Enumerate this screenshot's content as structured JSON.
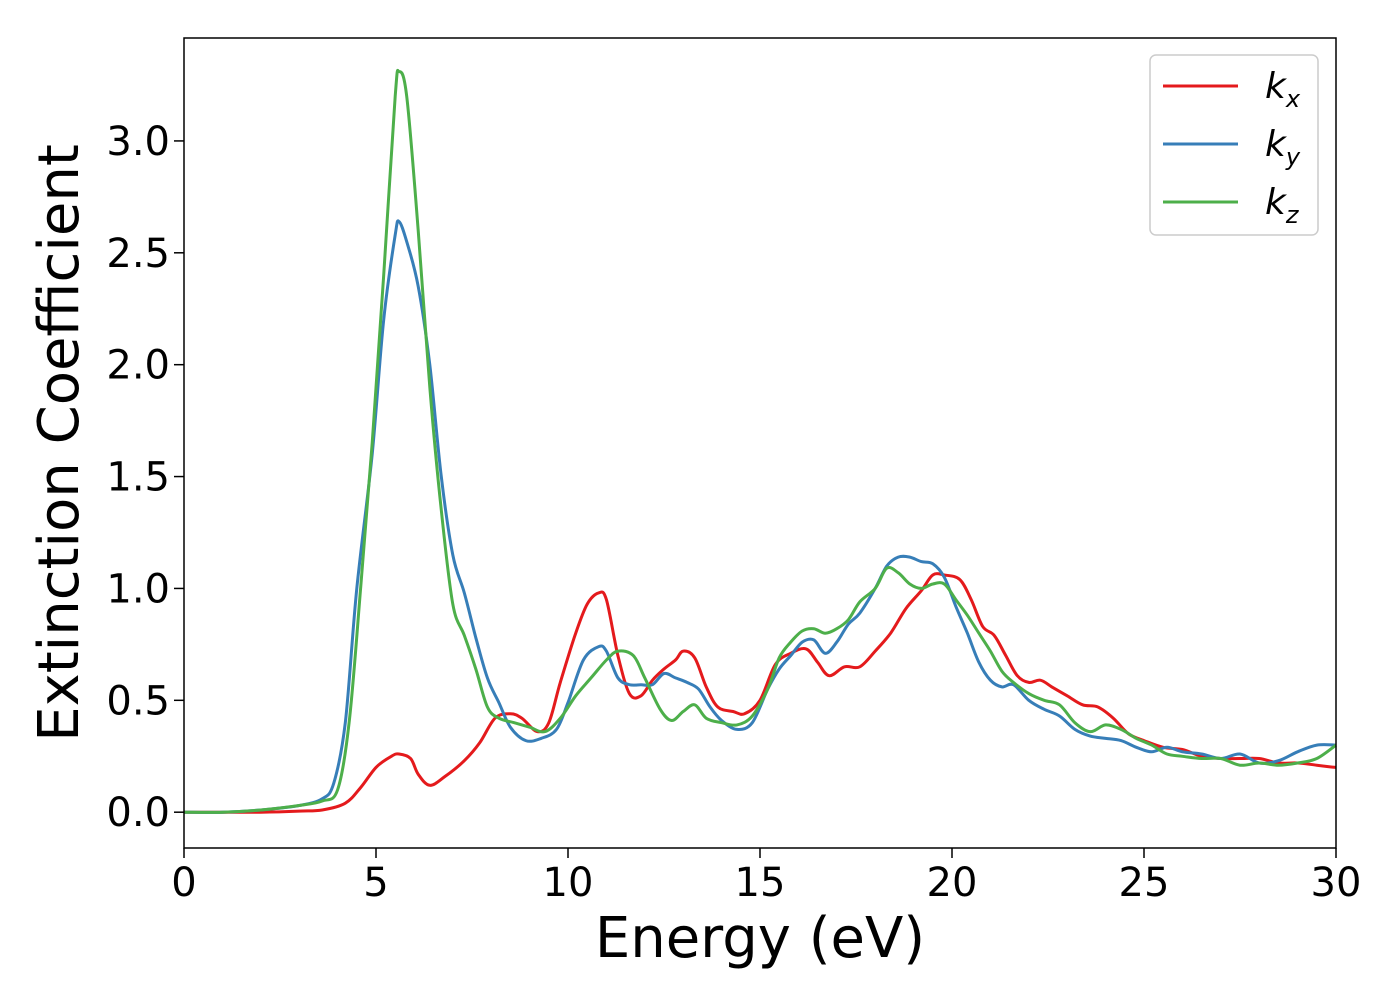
{
  "chart_data": {
    "type": "line",
    "xlabel": "Energy (eV)",
    "ylabel": "Extinction Coefficient",
    "xlim": [
      0,
      30
    ],
    "ylim": [
      -0.16,
      3.46
    ],
    "x_ticks": [
      "0",
      "5",
      "10",
      "15",
      "20",
      "25",
      "30"
    ],
    "y_ticks": [
      "0.0",
      "0.5",
      "1.0",
      "1.5",
      "2.0",
      "2.5",
      "3.0"
    ],
    "grid": false,
    "legend_position": "top-right",
    "series": [
      {
        "name": "k",
        "subscript": "x",
        "color": "#e41a1c",
        "points": [
          [
            0,
            0
          ],
          [
            1,
            0
          ],
          [
            2,
            0
          ],
          [
            3,
            0.005
          ],
          [
            3.6,
            0.01
          ],
          [
            4.2,
            0.04
          ],
          [
            4.6,
            0.11
          ],
          [
            5.0,
            0.2
          ],
          [
            5.4,
            0.25
          ],
          [
            5.6,
            0.26
          ],
          [
            5.9,
            0.24
          ],
          [
            6.1,
            0.17
          ],
          [
            6.4,
            0.12
          ],
          [
            6.8,
            0.16
          ],
          [
            7.3,
            0.23
          ],
          [
            7.7,
            0.31
          ],
          [
            8.1,
            0.42
          ],
          [
            8.5,
            0.44
          ],
          [
            8.8,
            0.42
          ],
          [
            9.2,
            0.36
          ],
          [
            9.5,
            0.4
          ],
          [
            9.8,
            0.58
          ],
          [
            10.2,
            0.8
          ],
          [
            10.5,
            0.93
          ],
          [
            10.8,
            0.98
          ],
          [
            11.0,
            0.95
          ],
          [
            11.3,
            0.7
          ],
          [
            11.6,
            0.53
          ],
          [
            11.9,
            0.52
          ],
          [
            12.2,
            0.59
          ],
          [
            12.5,
            0.64
          ],
          [
            12.8,
            0.68
          ],
          [
            13.0,
            0.72
          ],
          [
            13.3,
            0.69
          ],
          [
            13.6,
            0.56
          ],
          [
            13.9,
            0.47
          ],
          [
            14.3,
            0.45
          ],
          [
            14.6,
            0.44
          ],
          [
            15.0,
            0.5
          ],
          [
            15.4,
            0.66
          ],
          [
            15.8,
            0.71
          ],
          [
            16.2,
            0.73
          ],
          [
            16.5,
            0.67
          ],
          [
            16.8,
            0.61
          ],
          [
            17.2,
            0.65
          ],
          [
            17.6,
            0.65
          ],
          [
            18.0,
            0.72
          ],
          [
            18.4,
            0.8
          ],
          [
            18.8,
            0.91
          ],
          [
            19.2,
            0.99
          ],
          [
            19.5,
            1.06
          ],
          [
            19.8,
            1.06
          ],
          [
            20.2,
            1.04
          ],
          [
            20.5,
            0.95
          ],
          [
            20.8,
            0.83
          ],
          [
            21.1,
            0.79
          ],
          [
            21.4,
            0.7
          ],
          [
            21.7,
            0.61
          ],
          [
            22.0,
            0.58
          ],
          [
            22.3,
            0.59
          ],
          [
            22.6,
            0.56
          ],
          [
            23.0,
            0.52
          ],
          [
            23.4,
            0.48
          ],
          [
            23.8,
            0.47
          ],
          [
            24.2,
            0.42
          ],
          [
            24.6,
            0.35
          ],
          [
            25.0,
            0.32
          ],
          [
            25.5,
            0.29
          ],
          [
            26.0,
            0.28
          ],
          [
            26.5,
            0.25
          ],
          [
            27.0,
            0.24
          ],
          [
            27.5,
            0.24
          ],
          [
            28.0,
            0.24
          ],
          [
            28.5,
            0.22
          ],
          [
            29.0,
            0.22
          ],
          [
            29.5,
            0.21
          ],
          [
            30,
            0.2
          ]
        ]
      },
      {
        "name": "k",
        "subscript": "y",
        "color": "#377eb8",
        "points": [
          [
            0,
            0
          ],
          [
            1,
            0
          ],
          [
            2,
            0.01
          ],
          [
            3,
            0.03
          ],
          [
            3.6,
            0.06
          ],
          [
            3.9,
            0.13
          ],
          [
            4.2,
            0.4
          ],
          [
            4.5,
            1.0
          ],
          [
            4.9,
            1.6
          ],
          [
            5.2,
            2.2
          ],
          [
            5.5,
            2.58
          ],
          [
            5.6,
            2.64
          ],
          [
            5.8,
            2.55
          ],
          [
            6.1,
            2.35
          ],
          [
            6.4,
            2.0
          ],
          [
            6.7,
            1.5
          ],
          [
            7.0,
            1.15
          ],
          [
            7.3,
            0.98
          ],
          [
            7.6,
            0.78
          ],
          [
            7.9,
            0.6
          ],
          [
            8.2,
            0.49
          ],
          [
            8.5,
            0.38
          ],
          [
            8.9,
            0.32
          ],
          [
            9.3,
            0.33
          ],
          [
            9.7,
            0.37
          ],
          [
            10.0,
            0.49
          ],
          [
            10.4,
            0.68
          ],
          [
            10.8,
            0.74
          ],
          [
            11.0,
            0.72
          ],
          [
            11.3,
            0.6
          ],
          [
            11.6,
            0.57
          ],
          [
            11.9,
            0.57
          ],
          [
            12.2,
            0.57
          ],
          [
            12.5,
            0.62
          ],
          [
            12.8,
            0.6
          ],
          [
            13.1,
            0.58
          ],
          [
            13.4,
            0.55
          ],
          [
            13.7,
            0.47
          ],
          [
            14.0,
            0.41
          ],
          [
            14.4,
            0.37
          ],
          [
            14.8,
            0.4
          ],
          [
            15.2,
            0.55
          ],
          [
            15.5,
            0.64
          ],
          [
            15.8,
            0.7
          ],
          [
            16.1,
            0.76
          ],
          [
            16.4,
            0.77
          ],
          [
            16.7,
            0.71
          ],
          [
            17.0,
            0.76
          ],
          [
            17.3,
            0.84
          ],
          [
            17.6,
            0.89
          ],
          [
            18.0,
            1.0
          ],
          [
            18.3,
            1.1
          ],
          [
            18.6,
            1.14
          ],
          [
            18.9,
            1.14
          ],
          [
            19.2,
            1.12
          ],
          [
            19.5,
            1.11
          ],
          [
            19.8,
            1.05
          ],
          [
            20.1,
            0.92
          ],
          [
            20.4,
            0.8
          ],
          [
            20.7,
            0.67
          ],
          [
            21.0,
            0.59
          ],
          [
            21.3,
            0.56
          ],
          [
            21.6,
            0.57
          ],
          [
            22.0,
            0.5
          ],
          [
            22.4,
            0.46
          ],
          [
            22.8,
            0.43
          ],
          [
            23.2,
            0.37
          ],
          [
            23.6,
            0.34
          ],
          [
            24.0,
            0.33
          ],
          [
            24.4,
            0.32
          ],
          [
            24.8,
            0.29
          ],
          [
            25.2,
            0.27
          ],
          [
            25.6,
            0.29
          ],
          [
            26.0,
            0.27
          ],
          [
            26.5,
            0.26
          ],
          [
            27.0,
            0.24
          ],
          [
            27.5,
            0.26
          ],
          [
            28.0,
            0.22
          ],
          [
            28.5,
            0.23
          ],
          [
            29.0,
            0.27
          ],
          [
            29.5,
            0.3
          ],
          [
            30,
            0.3
          ]
        ]
      },
      {
        "name": "k",
        "subscript": "z",
        "color": "#4daf4a",
        "points": [
          [
            0,
            0
          ],
          [
            1,
            0
          ],
          [
            2,
            0.01
          ],
          [
            3,
            0.03
          ],
          [
            3.6,
            0.05
          ],
          [
            4.0,
            0.1
          ],
          [
            4.3,
            0.4
          ],
          [
            4.6,
            1.0
          ],
          [
            4.9,
            1.65
          ],
          [
            5.2,
            2.4
          ],
          [
            5.5,
            3.2
          ],
          [
            5.6,
            3.31
          ],
          [
            5.8,
            3.2
          ],
          [
            6.1,
            2.6
          ],
          [
            6.4,
            1.9
          ],
          [
            6.7,
            1.35
          ],
          [
            7.0,
            0.93
          ],
          [
            7.3,
            0.79
          ],
          [
            7.6,
            0.64
          ],
          [
            7.9,
            0.47
          ],
          [
            8.2,
            0.42
          ],
          [
            8.6,
            0.4
          ],
          [
            9.0,
            0.38
          ],
          [
            9.4,
            0.36
          ],
          [
            9.8,
            0.42
          ],
          [
            10.2,
            0.52
          ],
          [
            10.6,
            0.6
          ],
          [
            11.0,
            0.68
          ],
          [
            11.3,
            0.72
          ],
          [
            11.7,
            0.7
          ],
          [
            12.0,
            0.6
          ],
          [
            12.4,
            0.46
          ],
          [
            12.7,
            0.41
          ],
          [
            13.0,
            0.45
          ],
          [
            13.3,
            0.48
          ],
          [
            13.6,
            0.42
          ],
          [
            14.0,
            0.4
          ],
          [
            14.4,
            0.39
          ],
          [
            14.8,
            0.43
          ],
          [
            15.2,
            0.55
          ],
          [
            15.5,
            0.69
          ],
          [
            15.8,
            0.76
          ],
          [
            16.1,
            0.81
          ],
          [
            16.4,
            0.82
          ],
          [
            16.7,
            0.8
          ],
          [
            17.0,
            0.82
          ],
          [
            17.3,
            0.86
          ],
          [
            17.6,
            0.94
          ],
          [
            18.0,
            1.0
          ],
          [
            18.3,
            1.09
          ],
          [
            18.6,
            1.07
          ],
          [
            18.9,
            1.02
          ],
          [
            19.2,
            1.0
          ],
          [
            19.5,
            1.02
          ],
          [
            19.8,
            1.02
          ],
          [
            20.1,
            0.95
          ],
          [
            20.4,
            0.88
          ],
          [
            20.7,
            0.8
          ],
          [
            21.0,
            0.72
          ],
          [
            21.3,
            0.63
          ],
          [
            21.6,
            0.58
          ],
          [
            22.0,
            0.53
          ],
          [
            22.4,
            0.5
          ],
          [
            22.8,
            0.48
          ],
          [
            23.2,
            0.4
          ],
          [
            23.6,
            0.36
          ],
          [
            24.0,
            0.39
          ],
          [
            24.4,
            0.37
          ],
          [
            24.8,
            0.33
          ],
          [
            25.2,
            0.3
          ],
          [
            25.6,
            0.26
          ],
          [
            26.0,
            0.25
          ],
          [
            26.5,
            0.24
          ],
          [
            27.0,
            0.24
          ],
          [
            27.5,
            0.21
          ],
          [
            28.0,
            0.22
          ],
          [
            28.5,
            0.21
          ],
          [
            29.0,
            0.22
          ],
          [
            29.5,
            0.24
          ],
          [
            30,
            0.3
          ]
        ]
      }
    ]
  }
}
